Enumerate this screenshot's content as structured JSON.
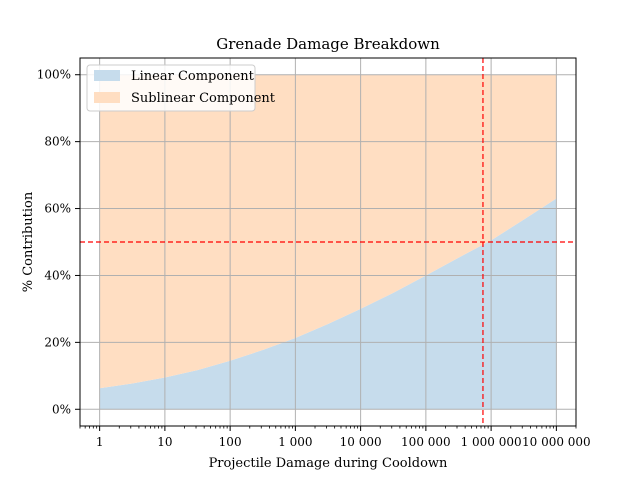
{
  "chart_data": {
    "type": "area",
    "title": "Grenade Damage Breakdown",
    "xlabel": "Projectile Damage during Cooldown",
    "ylabel": "% Contribution",
    "x_scale": "log",
    "xlim": [
      0.5,
      20000000
    ],
    "ylim": [
      -0.05,
      1.05
    ],
    "x_ticks": [
      {
        "value": 1,
        "label": "1"
      },
      {
        "value": 10,
        "label": "10"
      },
      {
        "value": 100,
        "label": "100"
      },
      {
        "value": 1000,
        "label": "1 000"
      },
      {
        "value": 10000,
        "label": "10 000"
      },
      {
        "value": 100000,
        "label": "100 000"
      },
      {
        "value": 1000000,
        "label": "1 000 000"
      },
      {
        "value": 10000000,
        "label": "10 000 000"
      }
    ],
    "y_ticks": [
      {
        "value": 0,
        "label": "0%"
      },
      {
        "value": 0.2,
        "label": "20%"
      },
      {
        "value": 0.4,
        "label": "40%"
      },
      {
        "value": 0.6,
        "label": "60%"
      },
      {
        "value": 0.8,
        "label": "80%"
      },
      {
        "value": 1.0,
        "label": "100%"
      }
    ],
    "grid": true,
    "legend_position": "top-left",
    "x": [
      1,
      3.16,
      10,
      31.6,
      100,
      316,
      1000,
      3160,
      10000,
      31600,
      100000,
      316000,
      1000000,
      3160000,
      10000000
    ],
    "series": [
      {
        "name": "Linear Component",
        "color": "#c6dcec",
        "values": [
          0.063,
          0.077,
          0.095,
          0.117,
          0.145,
          0.177,
          0.213,
          0.255,
          0.3,
          0.348,
          0.4,
          0.453,
          0.505,
          0.567,
          0.63
        ]
      },
      {
        "name": "Sublinear Component",
        "color": "#ffdec2",
        "values": [
          0.937,
          0.923,
          0.905,
          0.883,
          0.855,
          0.823,
          0.787,
          0.745,
          0.7,
          0.652,
          0.6,
          0.547,
          0.495,
          0.433,
          0.37
        ]
      }
    ],
    "reference_lines": [
      {
        "orientation": "horizontal",
        "value": 0.5,
        "color": "#ff0000",
        "style": "dashed"
      },
      {
        "orientation": "vertical",
        "value": 750000,
        "color": "#ff0000",
        "style": "dashed"
      }
    ]
  }
}
